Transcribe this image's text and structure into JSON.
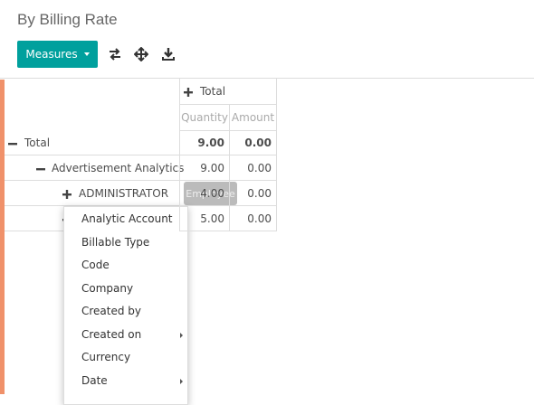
{
  "header": {
    "title": "By Billing Rate",
    "measures_button": "Measures"
  },
  "pivot": {
    "column_header": "Total",
    "measures": [
      "Quantity",
      "Amount"
    ],
    "rows": [
      {
        "label": "Total",
        "quantity": "9.00",
        "amount": "0.00"
      },
      {
        "label": "Advertisement Analytics",
        "quantity": "9.00",
        "amount": "0.00"
      },
      {
        "label": "ADMINISTRATOR",
        "quantity": "4.00",
        "amount": "0.00"
      },
      {
        "label": null,
        "quantity": "5.00",
        "amount": "0.00"
      }
    ]
  },
  "tooltip": "Employee",
  "dropdown": {
    "items": [
      {
        "label": "Analytic Account",
        "submenu": false
      },
      {
        "label": "Billable Type",
        "submenu": false
      },
      {
        "label": "Code",
        "submenu": false
      },
      {
        "label": "Company",
        "submenu": false
      },
      {
        "label": "Created by",
        "submenu": false
      },
      {
        "label": "Created on",
        "submenu": true
      },
      {
        "label": "Currency",
        "submenu": false
      },
      {
        "label": "Date",
        "submenu": true
      }
    ]
  }
}
